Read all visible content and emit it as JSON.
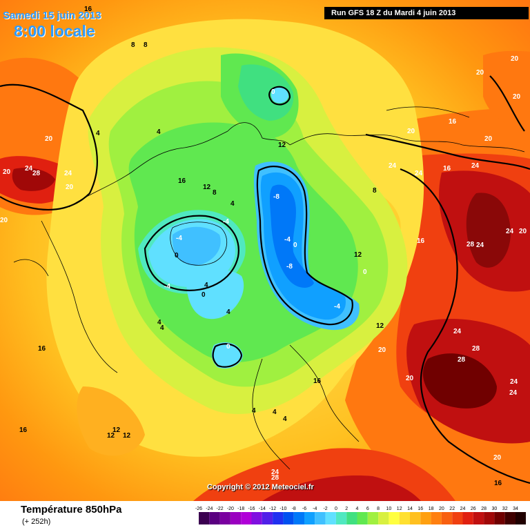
{
  "header": {
    "date_title": "Samedi 15 juin 2013",
    "time_title": "8:00 locale",
    "run_info": "Run GFS 18 Z du Mardi 4 juin 2013"
  },
  "footer": {
    "parameter": "Température 850hPa",
    "forecast_hour": "(+ 252h)",
    "copyright": "Copyright © 2012 Meteociel.fr"
  },
  "legend": {
    "values": [
      "-26",
      "-24",
      "-22",
      "-20",
      "-18",
      "-16",
      "-14",
      "-12",
      "-10",
      "-8",
      "-6",
      "-4",
      "-2",
      "0",
      "2",
      "4",
      "6",
      "8",
      "10",
      "12",
      "14",
      "16",
      "18",
      "20",
      "22",
      "24",
      "26",
      "28",
      "30",
      "32",
      "34"
    ],
    "colors": [
      "#3b0050",
      "#5a0080",
      "#7a00a0",
      "#9a00c0",
      "#b000d8",
      "#8010e0",
      "#5020e8",
      "#2030f0",
      "#0050f0",
      "#0078f8",
      "#10a0ff",
      "#40c0ff",
      "#60e0ff",
      "#50e8c0",
      "#40e080",
      "#60e850",
      "#a0f040",
      "#d8f040",
      "#ffff40",
      "#ffe030",
      "#ffc020",
      "#ffa010",
      "#ff8010",
      "#f86010",
      "#f04010",
      "#e02010",
      "#c01010",
      "#a00808",
      "#700000",
      "#400000",
      "#200000"
    ]
  },
  "map_labels": [
    "16",
    "8",
    "8",
    "0",
    "20",
    "20",
    "20",
    "20",
    "24",
    "28",
    "24",
    "20",
    "16",
    "12",
    "8",
    "4",
    "4",
    "12",
    "20",
    "16",
    "20",
    "24",
    "24",
    "16",
    "24",
    "8",
    "-8",
    "-4",
    "0",
    "12",
    "0",
    "-4",
    "-8",
    "-4",
    "-4",
    "-4",
    "0",
    "4",
    "0",
    "4",
    "4",
    "4",
    "16",
    "0",
    "12",
    "24",
    "28",
    "28",
    "24",
    "24",
    "20",
    "20",
    "24",
    "16",
    "20",
    "24",
    "28",
    "20",
    "16",
    "12",
    "12",
    "4",
    "4",
    "4",
    "24",
    "28",
    "20",
    "16",
    "20",
    "16",
    "4",
    "12"
  ]
}
